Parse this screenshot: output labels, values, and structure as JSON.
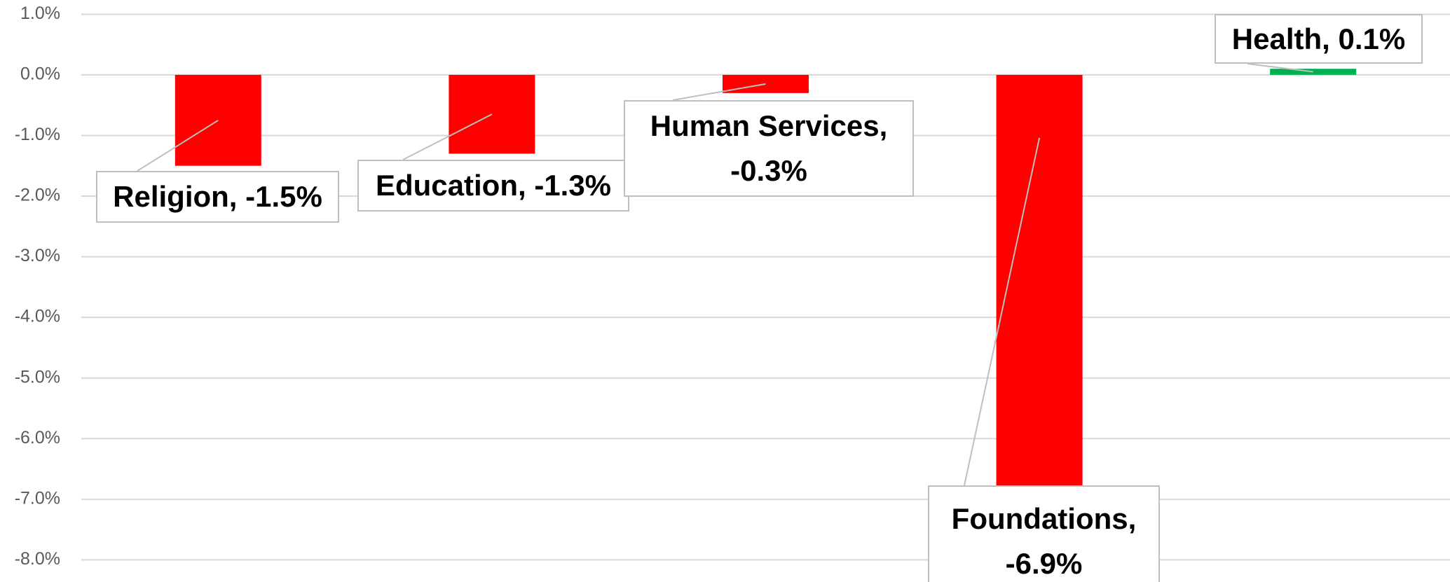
{
  "chart_data": {
    "type": "bar",
    "values": [
      -1.5,
      -1.3,
      -0.3,
      -6.9,
      0.1
    ],
    "value_labels": [
      "Religion, -1.5%",
      "Education, -1.3%",
      "Human Services, -0.3%",
      "Foundations, -6.9%",
      "Health, 0.1%"
    ],
    "colors": [
      "#ff0000",
      "#ff0000",
      "#ff0000",
      "#ff0000",
      "#00b050"
    ],
    "ylim": [
      -8.4,
      1.2
    ],
    "yticks": [
      {
        "value": 1,
        "label": "1.0%"
      },
      {
        "value": 0,
        "label": "0.0%"
      },
      {
        "value": -1,
        "label": "-1.0%"
      },
      {
        "value": -2,
        "label": "-2.0%"
      },
      {
        "value": -3,
        "label": "-3.0%"
      },
      {
        "value": -4,
        "label": "-4.0%"
      },
      {
        "value": -5,
        "label": "-5.0%"
      },
      {
        "value": -6,
        "label": "-6.0%"
      },
      {
        "value": -7,
        "label": "-7.0%"
      },
      {
        "value": -8,
        "label": "-8.0%"
      }
    ],
    "grid": true
  }
}
